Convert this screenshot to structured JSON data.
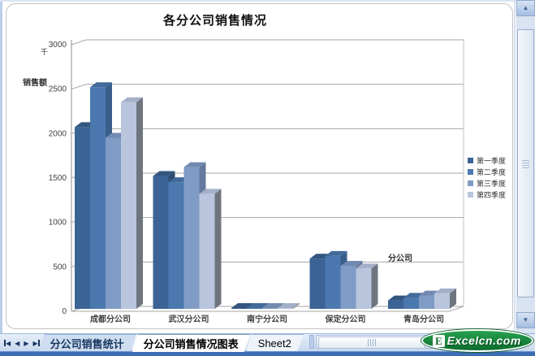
{
  "chart_data": {
    "type": "bar",
    "variant": "3d-clustered-column",
    "title": "各分公司销售情况",
    "value_axis": {
      "unit_label": "千",
      "title": "销售额",
      "min": 0,
      "max": 3000,
      "step": 500,
      "tick_labels": [
        "3000",
        "2500",
        "2000",
        "1500",
        "1000",
        "500",
        "0"
      ]
    },
    "category_axis_title": "分公司",
    "categories": [
      "成都分公司",
      "武汉分公司",
      "南宁分公司",
      "保定分公司",
      "青岛分公司"
    ],
    "series": [
      {
        "name": "第一季度",
        "values": [
          2100,
          1550,
          40,
          620,
          150
        ],
        "front": "#3B6395",
        "top": "#33567F",
        "side": "#2D4C72"
      },
      {
        "name": "第二季度",
        "values": [
          2550,
          1480,
          50,
          650,
          180
        ],
        "front": "#4B78AF",
        "top": "#426A9B",
        "side": "#3A5E8A"
      },
      {
        "name": "第三季度",
        "values": [
          1980,
          1650,
          45,
          540,
          205
        ],
        "front": "#809BC5",
        "top": "#7289B0",
        "side": "#66799C"
      },
      {
        "name": "第四季度",
        "values": [
          2380,
          1350,
          35,
          510,
          230
        ],
        "front": "#B9C5DD",
        "top": "#A4AFC8",
        "side": "#6F757F"
      }
    ],
    "legend_position": "right",
    "gridlines": true,
    "ylim": [
      0,
      3000
    ]
  },
  "sheet_tabs": {
    "tabs": [
      {
        "label": "分公司销售统计",
        "active": false
      },
      {
        "label": "分公司销售情况图表",
        "active": true
      },
      {
        "label": "Sheet2",
        "active": false,
        "plain": true
      }
    ],
    "nav_icons": [
      "first",
      "previous",
      "next",
      "last"
    ]
  },
  "logo": {
    "icon_letter": "E",
    "text": "Excelcn.com"
  },
  "colors": {
    "grid": "#A6A6A6",
    "axis": "#8C8C8C",
    "wall_edge": "#C0C0C0",
    "tick_text": "#404040",
    "bottom_strip": "#3E6CB4"
  }
}
